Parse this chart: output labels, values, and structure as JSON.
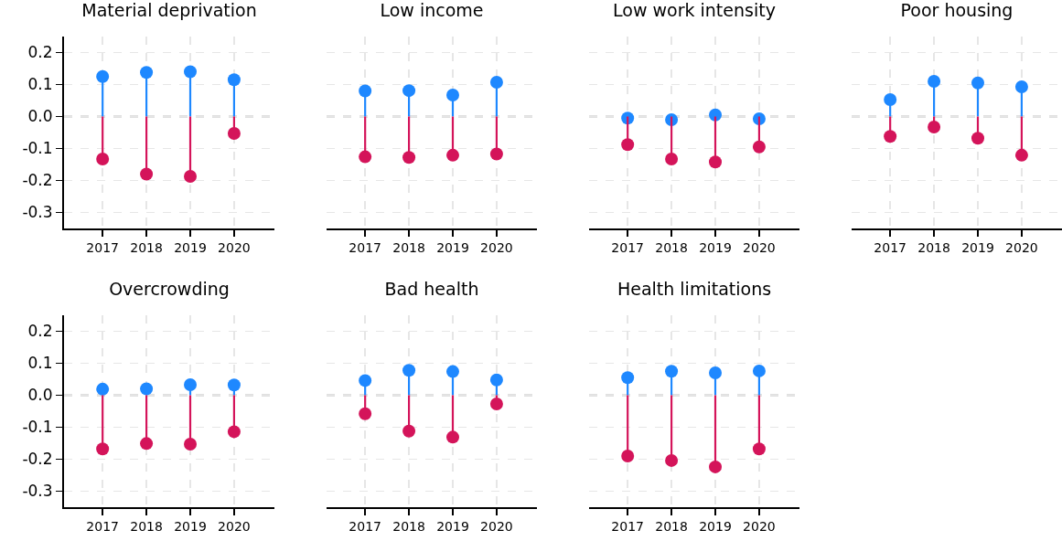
{
  "chart_data": [
    {
      "type": "lollipop",
      "title": "Material deprivation",
      "categories": [
        "2017",
        "2018",
        "2019",
        "2020"
      ],
      "series": [
        {
          "color": "#1e88ff",
          "values": [
            0.125,
            0.138,
            0.14,
            0.115
          ]
        },
        {
          "color": "#d4145a",
          "values": [
            -0.133,
            -0.18,
            -0.187,
            -0.053
          ]
        }
      ],
      "ylim": [
        -0.35,
        0.25
      ],
      "yticks": [
        {
          "value": -0.3,
          "label": "-0.3"
        },
        {
          "value": -0.2,
          "label": "-0.2"
        },
        {
          "value": -0.1,
          "label": "-0.1"
        },
        {
          "value": 0,
          "label": "0.0"
        },
        {
          "value": 0.1,
          "label": "0.1"
        },
        {
          "value": 0.2,
          "label": "0.2"
        }
      ],
      "grid": true,
      "marker": "circle",
      "ref_lines": [
        {
          "axis": "y",
          "value": 0,
          "color": "#808080",
          "line_style": "dashed"
        }
      ]
    },
    {
      "type": "lollipop",
      "title": "Low income",
      "categories": [
        "2017",
        "2018",
        "2019",
        "2020"
      ],
      "series": [
        {
          "color": "#1e88ff",
          "values": [
            0.08,
            0.081,
            0.067,
            0.107
          ]
        },
        {
          "color": "#d4145a",
          "values": [
            -0.126,
            -0.128,
            -0.121,
            -0.117
          ]
        }
      ],
      "ylim": [
        -0.35,
        0.25
      ],
      "yticks": [
        -0.3,
        -0.2,
        -0.1,
        0,
        0.1,
        0.2
      ],
      "grid": true,
      "marker": "circle",
      "tick_labels": "x",
      "ref_lines": [
        {
          "axis": "y",
          "value": 0,
          "color": "#808080",
          "line_style": "dashed"
        }
      ]
    },
    {
      "type": "lollipop",
      "title": "Low work intensity",
      "categories": [
        "2017",
        "2018",
        "2019",
        "2020"
      ],
      "series": [
        {
          "color": "#1e88ff",
          "values": [
            -0.005,
            -0.01,
            0.005,
            -0.007
          ]
        },
        {
          "color": "#d4145a",
          "values": [
            -0.088,
            -0.133,
            -0.142,
            -0.095
          ]
        }
      ],
      "ylim": [
        -0.35,
        0.25
      ],
      "yticks": [
        -0.3,
        -0.2,
        -0.1,
        0,
        0.1,
        0.2
      ],
      "grid": true,
      "marker": "circle",
      "tick_labels": "x",
      "ref_lines": [
        {
          "axis": "y",
          "value": 0,
          "color": "#808080",
          "line_style": "dashed"
        }
      ]
    },
    {
      "type": "lollipop",
      "title": "Poor housing",
      "categories": [
        "2017",
        "2018",
        "2019",
        "2020"
      ],
      "series": [
        {
          "color": "#1e88ff",
          "values": [
            0.053,
            0.11,
            0.105,
            0.093
          ]
        },
        {
          "color": "#d4145a",
          "values": [
            -0.062,
            -0.033,
            -0.068,
            -0.121
          ]
        }
      ],
      "ylim": [
        -0.35,
        0.25
      ],
      "yticks": [
        -0.3,
        -0.2,
        -0.1,
        0,
        0.1,
        0.2
      ],
      "grid": true,
      "marker": "circle",
      "tick_labels": "x",
      "ref_lines": [
        {
          "axis": "y",
          "value": 0,
          "color": "#808080",
          "line_style": "dashed"
        }
      ]
    },
    {
      "type": "lollipop",
      "title": "Overcrowding",
      "categories": [
        "2017",
        "2018",
        "2019",
        "2020"
      ],
      "series": [
        {
          "color": "#1e88ff",
          "values": [
            0.019,
            0.02,
            0.033,
            0.032
          ]
        },
        {
          "color": "#d4145a",
          "values": [
            -0.168,
            -0.151,
            -0.153,
            -0.114
          ]
        }
      ],
      "ylim": [
        -0.35,
        0.25
      ],
      "yticks": [
        {
          "value": -0.3,
          "label": "-0.3"
        },
        {
          "value": -0.2,
          "label": "-0.2"
        },
        {
          "value": -0.1,
          "label": "-0.1"
        },
        {
          "value": 0,
          "label": "0.0"
        },
        {
          "value": 0.1,
          "label": "0.1"
        },
        {
          "value": 0.2,
          "label": "0.2"
        }
      ],
      "grid": true,
      "marker": "circle",
      "ref_lines": [
        {
          "axis": "y",
          "value": 0,
          "color": "#808080",
          "line_style": "dashed"
        }
      ]
    },
    {
      "type": "lollipop",
      "title": "Bad health",
      "categories": [
        "2017",
        "2018",
        "2019",
        "2020"
      ],
      "series": [
        {
          "color": "#1e88ff",
          "values": [
            0.046,
            0.078,
            0.074,
            0.048
          ]
        },
        {
          "color": "#d4145a",
          "values": [
            -0.058,
            -0.112,
            -0.131,
            -0.027
          ]
        }
      ],
      "ylim": [
        -0.35,
        0.25
      ],
      "yticks": [
        -0.3,
        -0.2,
        -0.1,
        0,
        0.1,
        0.2
      ],
      "grid": true,
      "marker": "circle",
      "tick_labels": "x",
      "ref_lines": [
        {
          "axis": "y",
          "value": 0,
          "color": "#808080",
          "line_style": "dashed"
        }
      ]
    },
    {
      "type": "lollipop",
      "title": "Health limitations",
      "categories": [
        "2017",
        "2018",
        "2019",
        "2020"
      ],
      "series": [
        {
          "color": "#1e88ff",
          "values": [
            0.055,
            0.075,
            0.07,
            0.076
          ]
        },
        {
          "color": "#d4145a",
          "values": [
            -0.19,
            -0.204,
            -0.224,
            -0.168
          ]
        }
      ],
      "ylim": [
        -0.35,
        0.25
      ],
      "yticks": [
        -0.3,
        -0.2,
        -0.1,
        0,
        0.1,
        0.2
      ],
      "grid": true,
      "marker": "circle",
      "tick_labels": "x",
      "ref_lines": [
        {
          "axis": "y",
          "value": 0,
          "color": "#808080",
          "line_style": "dashed"
        }
      ]
    }
  ]
}
